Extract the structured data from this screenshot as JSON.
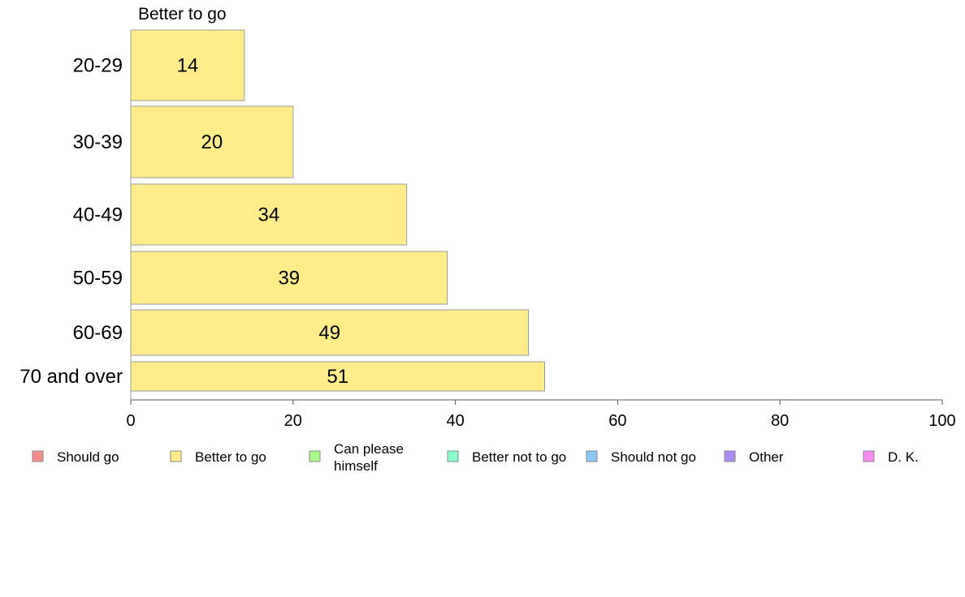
{
  "chart_data": {
    "type": "bar",
    "orientation": "horizontal",
    "title": "Better to go",
    "categories": [
      "20-29",
      "30-39",
      "40-49",
      "50-59",
      "60-69",
      "70 and over"
    ],
    "values": [
      14,
      20,
      34,
      39,
      49,
      51
    ],
    "data_labels": [
      "14",
      "20",
      "34",
      "39",
      "49",
      "51"
    ],
    "bar_color": "#ffed8a",
    "xlim": [
      0,
      100
    ],
    "xticks": [
      0,
      20,
      40,
      60,
      80,
      100
    ],
    "xtick_labels": [
      "0",
      "20",
      "40",
      "60",
      "80",
      "100"
    ],
    "grid": false,
    "legend_position": "bottom",
    "legend": [
      {
        "label": "Should go",
        "color": "#f48c8c"
      },
      {
        "label": "Better to go",
        "color": "#ffed8a"
      },
      {
        "label": "Can please himself",
        "label_lines": [
          "Can please",
          "himself"
        ],
        "color": "#a8f88a"
      },
      {
        "label": "Better not to go",
        "color": "#8affc9"
      },
      {
        "label": "Should not go",
        "color": "#8ac8f8"
      },
      {
        "label": "Other",
        "color": "#a98cf4"
      },
      {
        "label": "D. K.",
        "color": "#f88af0"
      }
    ]
  }
}
